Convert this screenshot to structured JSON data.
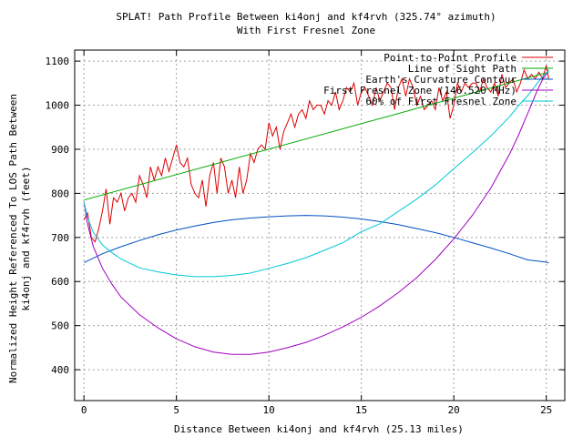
{
  "chart_data": {
    "type": "line",
    "title": "SPLAT! Path Profile Between ki4onj and kf4rvh (325.74° azimuth)",
    "subtitle": "With First Fresnel Zone",
    "xlabel": "Distance Between ki4onj and kf4rvh (25.13 miles)",
    "ylabel_line1": "Normalized Height Referenced To LOS Path Between",
    "ylabel_line2": "ki4onj and kf4rvh (feet)",
    "xlim": [
      -0.5,
      26
    ],
    "ylim": [
      330,
      1125
    ],
    "x_ticks": [
      0,
      5,
      10,
      15,
      20,
      25
    ],
    "y_ticks": [
      400,
      500,
      600,
      700,
      800,
      900,
      1000,
      1100
    ],
    "grid": true,
    "legend_position": "top-right",
    "series": [
      {
        "name": "Point-to-Point Profile",
        "color": "#dd0000",
        "x": [
          0,
          0.2,
          0.4,
          0.6,
          0.8,
          1.0,
          1.2,
          1.4,
          1.6,
          1.8,
          2.0,
          2.2,
          2.4,
          2.6,
          2.8,
          3.0,
          3.2,
          3.4,
          3.6,
          3.8,
          4.0,
          4.2,
          4.4,
          4.6,
          4.8,
          5.0,
          5.2,
          5.4,
          5.6,
          5.8,
          6.0,
          6.2,
          6.4,
          6.6,
          6.8,
          7.0,
          7.2,
          7.4,
          7.6,
          7.8,
          8.0,
          8.2,
          8.4,
          8.6,
          8.8,
          9.0,
          9.2,
          9.4,
          9.6,
          9.8,
          10.0,
          10.2,
          10.4,
          10.6,
          10.8,
          11.0,
          11.2,
          11.4,
          11.6,
          11.8,
          12.0,
          12.2,
          12.4,
          12.6,
          12.8,
          13.0,
          13.2,
          13.4,
          13.6,
          13.8,
          14.0,
          14.2,
          14.4,
          14.6,
          14.8,
          15.0,
          15.2,
          15.4,
          15.6,
          15.8,
          16.0,
          16.2,
          16.4,
          16.6,
          16.8,
          17.0,
          17.2,
          17.4,
          17.6,
          17.8,
          18.0,
          18.2,
          18.4,
          18.6,
          18.8,
          19.0,
          19.2,
          19.4,
          19.6,
          19.8,
          20.0,
          20.2,
          20.4,
          20.6,
          20.8,
          21.0,
          21.2,
          21.4,
          21.6,
          21.8,
          22.0,
          22.2,
          22.4,
          22.6,
          22.8,
          23.0,
          23.2,
          23.4,
          23.6,
          23.8,
          24.0,
          24.2,
          24.4,
          24.6,
          24.8,
          25.0,
          25.13
        ],
        "y": [
          740,
          755,
          700,
          690,
          720,
          760,
          810,
          730,
          790,
          780,
          800,
          760,
          790,
          800,
          780,
          840,
          820,
          790,
          860,
          830,
          860,
          840,
          880,
          850,
          880,
          910,
          870,
          860,
          880,
          820,
          800,
          790,
          830,
          770,
          840,
          870,
          800,
          880,
          860,
          800,
          830,
          790,
          860,
          800,
          830,
          890,
          870,
          900,
          910,
          900,
          960,
          930,
          950,
          900,
          940,
          960,
          980,
          950,
          980,
          990,
          970,
          1010,
          990,
          1000,
          1000,
          980,
          1010,
          1000,
          1030,
          990,
          1010,
          1040,
          1030,
          1050,
          1000,
          1030,
          1040,
          1020,
          1000,
          1040,
          1010,
          1030,
          1050,
          1040,
          990,
          1040,
          1060,
          1020,
          1060,
          1040,
          1000,
          1020,
          990,
          1000,
          1010,
          990,
          1040,
          1010,
          1030,
          970,
          1000,
          1050,
          1030,
          1050,
          1040,
          1050,
          1050,
          1030,
          1060,
          1040,
          1030,
          1050,
          1020,
          1070,
          1040,
          1050,
          1060,
          1030,
          1050,
          1080,
          1060,
          1070,
          1060,
          1075,
          1060,
          1090,
          1060
        ]
      },
      {
        "name": "Line of Sight Path",
        "color": "#00aa00",
        "x": [
          0,
          25.13
        ],
        "y": [
          785,
          1075
        ]
      },
      {
        "name": "Earth's Curvature Contour",
        "color": "#0050c0",
        "x": [
          0,
          1,
          2,
          3,
          4,
          5,
          6,
          7,
          8,
          9,
          10,
          11,
          12,
          13,
          14,
          15,
          16,
          17,
          18,
          19,
          20,
          21,
          22,
          23,
          24,
          25,
          25.13
        ],
        "y": [
          643,
          663,
          679,
          693,
          706,
          717,
          726,
          734,
          740,
          744,
          747,
          749,
          750,
          749,
          746,
          742,
          736,
          729,
          720,
          711,
          700,
          688,
          676,
          663,
          649,
          644,
          642
        ]
      },
      {
        "name": "First Fresnel Zone (146.520 MHz)",
        "color": "#a000c0",
        "x": [
          0,
          0.2,
          0.5,
          1,
          1.5,
          2,
          3,
          4,
          5,
          6,
          7,
          8,
          9,
          10,
          11,
          12,
          13,
          14,
          15,
          16,
          17,
          18,
          19,
          20,
          21,
          22,
          23,
          23.5,
          24,
          24.5,
          24.8,
          25,
          25.13
        ],
        "y": [
          780,
          730,
          680,
          630,
          595,
          565,
          525,
          495,
          470,
          452,
          440,
          435,
          435,
          440,
          450,
          462,
          478,
          497,
          519,
          545,
          575,
          609,
          650,
          697,
          750,
          812,
          888,
          932,
          982,
          1032,
          1058,
          1070,
          1080
        ]
      },
      {
        "name": "60% of First Fresnel Zone",
        "color": "#00c8d8",
        "x": [
          0,
          0.2,
          0.5,
          1,
          1.5,
          2,
          3,
          4,
          5,
          6,
          7,
          8,
          9,
          10,
          11,
          12,
          13,
          14,
          15,
          16,
          17,
          18,
          19,
          20,
          21,
          22,
          23,
          23.5,
          24,
          24.5,
          24.8,
          25,
          25.13
        ],
        "y": [
          780,
          745,
          712,
          683,
          666,
          651,
          631,
          622,
          615,
          611,
          611,
          614,
          619,
          630,
          641,
          654,
          671,
          688,
          713,
          731,
          759,
          787,
          819,
          856,
          892,
          930,
          973,
          999,
          1022,
          1049,
          1065,
          1073,
          1078
        ]
      }
    ]
  }
}
